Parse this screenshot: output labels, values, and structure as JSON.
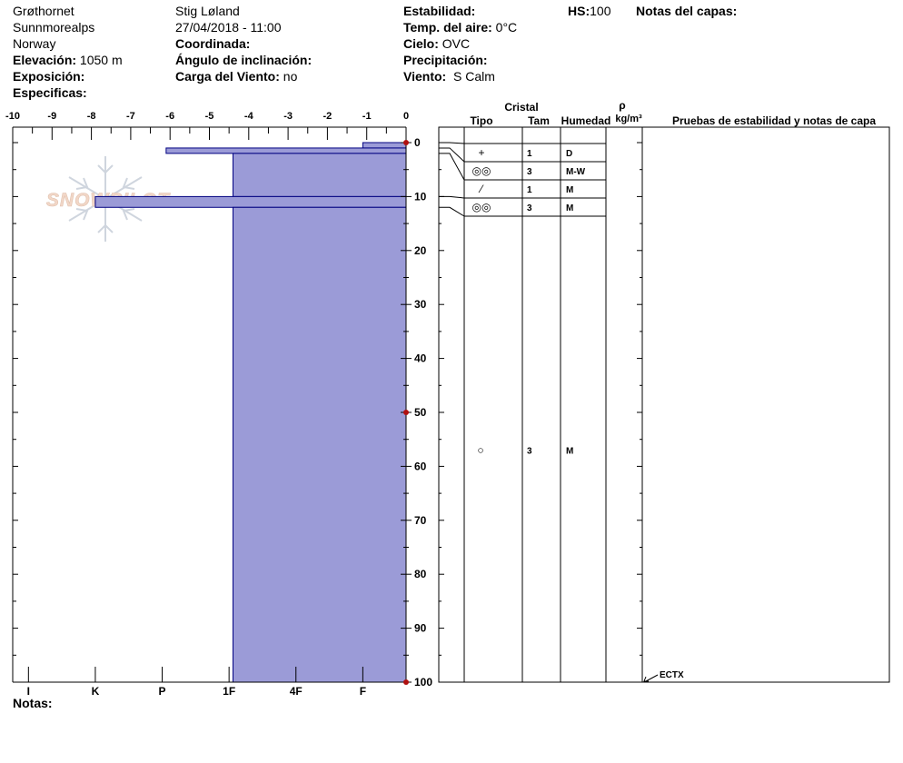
{
  "header": {
    "location": "Grøthornet",
    "range": "Sunnmorealps",
    "country": "Norway",
    "observer": "Stig Løland",
    "datetime": "27/04/2018 - 11:00",
    "elevation_label": "Elevación:",
    "elevation_value": "1050 m",
    "aspect_label": "Exposición:",
    "specifics_label": "Especificas:",
    "coordinate_label": "Coordinada:",
    "slope_label": "Ángulo de inclinación:",
    "wind_load_label": "Carga del Viento:",
    "wind_load_value": "no",
    "stability_label": "Estabilidad:",
    "air_temp_label": "Temp. del aire:",
    "air_temp_value": "0°C",
    "sky_label": "Cielo:",
    "sky_value": "OVC",
    "precip_label": "Precipitación:",
    "wind_label": "Viento:",
    "wind_value": "S Calm",
    "hs_label": "HS:",
    "hs_value": "100",
    "layer_notes_label": "Notas del capas:",
    "notes_label": "Notas:"
  },
  "watermark": "SNOWPILOT",
  "table_header": {
    "crystal": "Cristal",
    "type": "Tipo",
    "size": "Tam",
    "moisture": "Humedad",
    "rho": "ρ",
    "density_unit": "kg/m³",
    "tests": "Pruebas de estabilidad y notas de capa"
  },
  "colors": {
    "fill": "#9b9bd7",
    "outline": "#000080",
    "marker": "#b01010"
  },
  "chart_data": {
    "type": "bar",
    "temperature_axis": {
      "ticks": [
        "-10",
        "-9",
        "-8",
        "-7",
        "-6",
        "-5",
        "-4",
        "-3",
        "-2",
        "-1",
        "0"
      ],
      "range": [
        -10,
        0
      ]
    },
    "depth_axis": {
      "ticks": [
        "0",
        "10",
        "20",
        "30",
        "40",
        "50",
        "60",
        "70",
        "80",
        "90",
        "100"
      ],
      "range": [
        0,
        100
      ]
    },
    "hardness_axis": {
      "ticks": [
        "I",
        "K",
        "P",
        "1F",
        "4F",
        "F"
      ]
    },
    "hardness_profile": [
      {
        "top": 0,
        "bottom": 1,
        "hardness": -1.1
      },
      {
        "top": 1,
        "bottom": 2,
        "hardness": -6.1
      },
      {
        "top": 2,
        "bottom": 10,
        "hardness": -4.4
      },
      {
        "top": 10,
        "bottom": 12,
        "hardness": -7.9
      },
      {
        "top": 12,
        "bottom": 100,
        "hardness": -4.4
      }
    ],
    "depth_markers": [
      0,
      50,
      100
    ],
    "layers": [
      {
        "type": "+",
        "size": "1",
        "moisture": "D"
      },
      {
        "type": "◎◎",
        "size": "3",
        "moisture": "M-W"
      },
      {
        "type": "⁄",
        "size": "1",
        "moisture": "M"
      },
      {
        "type": "◎◎",
        "size": "3",
        "moisture": "M"
      }
    ],
    "deep_layer": {
      "type": "○",
      "size": "3",
      "moisture": "M"
    },
    "test_note": "ECTX"
  }
}
